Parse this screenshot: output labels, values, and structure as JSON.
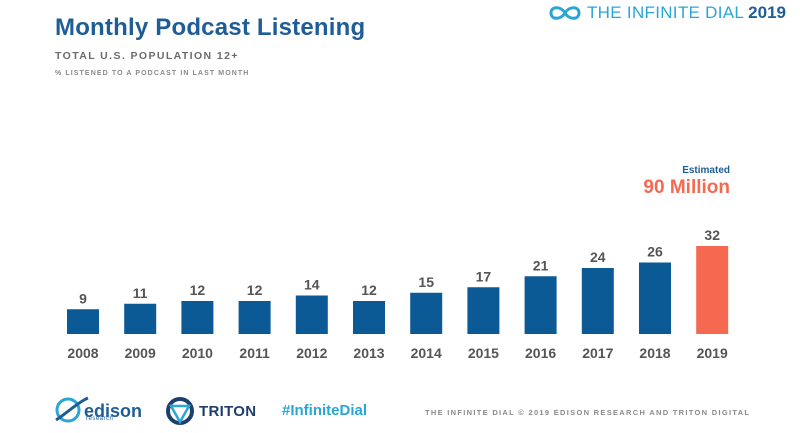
{
  "header": {
    "title": "Monthly Podcast Listening",
    "subtitle": "TOTAL U.S. POPULATION 12+",
    "note": "% LISTENED TO A PODCAST IN LAST MONTH",
    "brand_name": "THE INFINITE DIAL",
    "brand_year": "2019"
  },
  "annotation": {
    "label": "Estimated",
    "value": "90 Million"
  },
  "chart_data": {
    "type": "bar",
    "title": "Monthly Podcast Listening",
    "subtitle": "TOTAL U.S. POPULATION 12+",
    "ylabel": "% LISTENED TO A PODCAST IN LAST MONTH",
    "xlabel": "",
    "categories": [
      "2008",
      "2009",
      "2010",
      "2011",
      "2012",
      "2013",
      "2014",
      "2015",
      "2016",
      "2017",
      "2018",
      "2019"
    ],
    "values": [
      9,
      11,
      12,
      12,
      14,
      12,
      15,
      17,
      21,
      24,
      26,
      32
    ],
    "ylim": [
      0,
      32
    ],
    "grid": false,
    "legend": "none",
    "colors": {
      "default": "#0b5a96",
      "highlight": "#f4694f"
    },
    "highlight_index": 11
  },
  "footer": {
    "edison": "edison",
    "edison_sub": "research",
    "triton": "TRITON",
    "hashtag": "#InfiniteDial",
    "credit": "THE INFINITE DIAL  © 2019 EDISON RESEARCH AND TRITON DIGITAL"
  }
}
